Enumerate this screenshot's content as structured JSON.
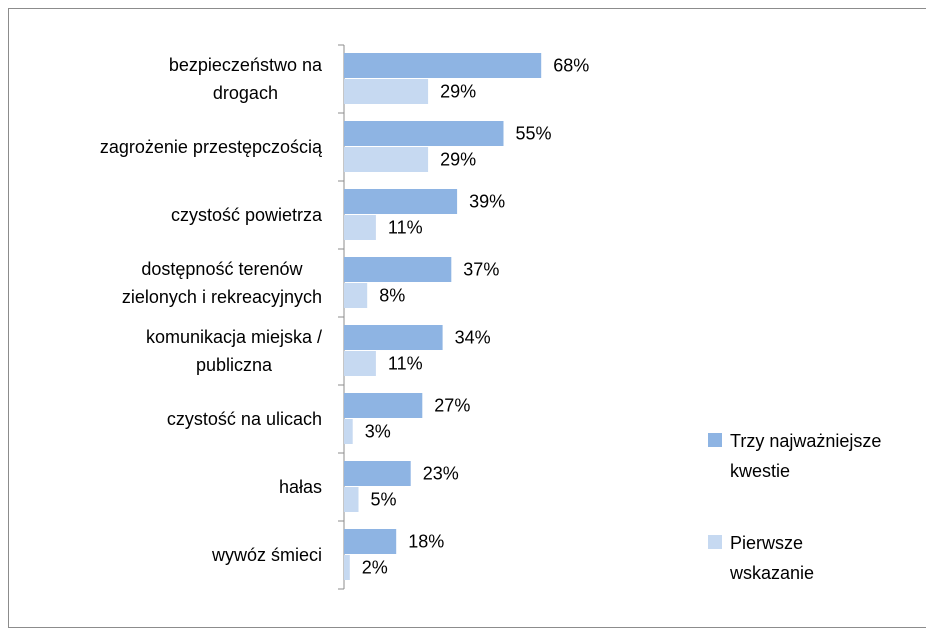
{
  "chart_data": {
    "type": "bar",
    "orientation": "horizontal",
    "categories": [
      "bezpieczeństwo na\ndrogach",
      "zagrożenie przestępczością",
      "czystość powietrza",
      "dostępność terenów\nzielonych i rekreacyjnych",
      "komunikacja miejska /\npubliczna",
      "czystość na ulicach",
      "hałas",
      "wywóz śmieci"
    ],
    "series": [
      {
        "name": "Trzy najważniejsze\nkwestie",
        "color": "#8eb4e3",
        "values": [
          68,
          55,
          39,
          37,
          34,
          27,
          23,
          18
        ],
        "value_labels": [
          "68%",
          "55%",
          "39%",
          "37%",
          "34%",
          "27%",
          "23%",
          "18%"
        ]
      },
      {
        "name": "Pierwsze\nwskazanie",
        "color": "#c6d9f1",
        "values": [
          29,
          29,
          11,
          8,
          11,
          3,
          5,
          2
        ],
        "value_labels": [
          "29%",
          "29%",
          "11%",
          "8%",
          "11%",
          "3%",
          "5%",
          "2%"
        ]
      }
    ],
    "xlim": [
      0,
      100
    ],
    "legend": "right"
  }
}
